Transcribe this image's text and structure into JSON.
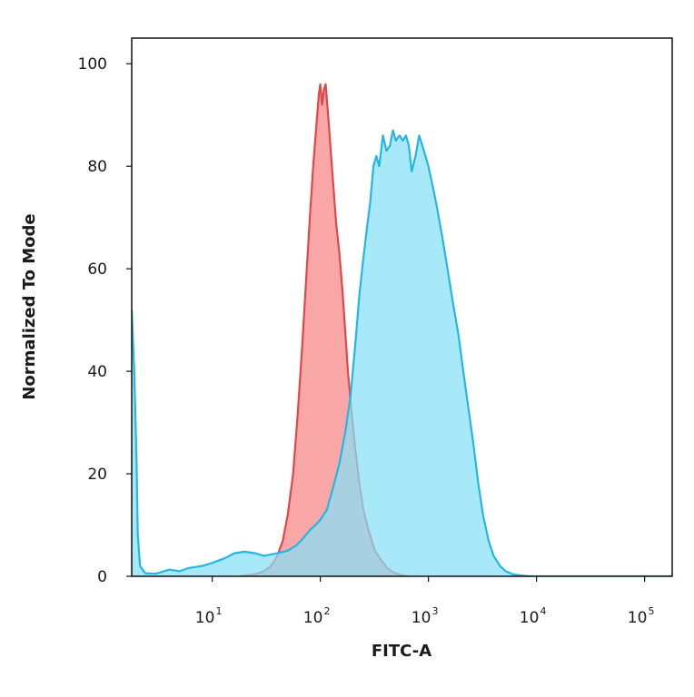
{
  "chart_data": {
    "type": "area",
    "title": "",
    "xlabel": "FITC-A",
    "ylabel": "Normalized To Mode",
    "x_scale": "log",
    "xlim": [
      1.8,
      180000
    ],
    "ylim": [
      0,
      105
    ],
    "grid": false,
    "legend": "none",
    "x_ticks": [
      {
        "base": "10",
        "exp": "1",
        "value": 10
      },
      {
        "base": "10",
        "exp": "2",
        "value": 100
      },
      {
        "base": "10",
        "exp": "3",
        "value": 1000
      },
      {
        "base": "10",
        "exp": "4",
        "value": 10000
      },
      {
        "base": "10",
        "exp": "5",
        "value": 100000
      }
    ],
    "y_ticks": [
      {
        "label": "0",
        "value": 0
      },
      {
        "label": "20",
        "value": 20
      },
      {
        "label": "40",
        "value": 40
      },
      {
        "label": "60",
        "value": 60
      },
      {
        "label": "80",
        "value": 80
      },
      {
        "label": "100",
        "value": 100
      }
    ],
    "series": [
      {
        "fill": "#f9a7a6",
        "stroke": "#e0474a",
        "points": [
          [
            18,
            0
          ],
          [
            25,
            0.4
          ],
          [
            30,
            1
          ],
          [
            35,
            2
          ],
          [
            40,
            4
          ],
          [
            45,
            7
          ],
          [
            50,
            12
          ],
          [
            56,
            20
          ],
          [
            62,
            32
          ],
          [
            68,
            45
          ],
          [
            74,
            58
          ],
          [
            80,
            70
          ],
          [
            86,
            80
          ],
          [
            92,
            88
          ],
          [
            97,
            94
          ],
          [
            100,
            96
          ],
          [
            104,
            92
          ],
          [
            108,
            95
          ],
          [
            112,
            96
          ],
          [
            116,
            92
          ],
          [
            122,
            86
          ],
          [
            130,
            78
          ],
          [
            140,
            69
          ],
          [
            150,
            63
          ],
          [
            160,
            56
          ],
          [
            170,
            48
          ],
          [
            180,
            40
          ],
          [
            195,
            32
          ],
          [
            210,
            25
          ],
          [
            230,
            18
          ],
          [
            250,
            13
          ],
          [
            280,
            9
          ],
          [
            320,
            5
          ],
          [
            370,
            3
          ],
          [
            420,
            1.5
          ],
          [
            480,
            0.7
          ],
          [
            560,
            0.2
          ],
          [
            650,
            0
          ]
        ]
      },
      {
        "fill": "#87e1f7",
        "stroke": "#26b6e0",
        "points": [
          [
            1.8,
            52
          ],
          [
            1.9,
            40
          ],
          [
            2.0,
            22
          ],
          [
            2.05,
            8
          ],
          [
            2.15,
            2
          ],
          [
            2.4,
            0.6
          ],
          [
            3,
            0.5
          ],
          [
            4,
            1.3
          ],
          [
            5,
            1
          ],
          [
            6,
            1.6
          ],
          [
            8,
            2
          ],
          [
            10,
            2.6
          ],
          [
            13,
            3.5
          ],
          [
            16,
            4.5
          ],
          [
            20,
            4.8
          ],
          [
            25,
            4.5
          ],
          [
            30,
            4
          ],
          [
            40,
            4.5
          ],
          [
            50,
            5
          ],
          [
            60,
            6
          ],
          [
            70,
            7.5
          ],
          [
            80,
            9
          ],
          [
            90,
            10
          ],
          [
            100,
            11
          ],
          [
            115,
            13
          ],
          [
            130,
            17
          ],
          [
            150,
            22
          ],
          [
            170,
            28
          ],
          [
            190,
            35
          ],
          [
            210,
            45
          ],
          [
            230,
            55
          ],
          [
            250,
            62
          ],
          [
            270,
            68
          ],
          [
            290,
            73
          ],
          [
            310,
            80
          ],
          [
            330,
            82
          ],
          [
            350,
            80
          ],
          [
            380,
            86
          ],
          [
            410,
            83
          ],
          [
            440,
            84
          ],
          [
            470,
            87
          ],
          [
            500,
            85
          ],
          [
            540,
            86
          ],
          [
            580,
            85
          ],
          [
            620,
            86
          ],
          [
            660,
            84
          ],
          [
            700,
            79
          ],
          [
            760,
            82
          ],
          [
            820,
            86
          ],
          [
            880,
            84
          ],
          [
            940,
            82
          ],
          [
            1000,
            80
          ],
          [
            1100,
            76
          ],
          [
            1200,
            72
          ],
          [
            1350,
            66
          ],
          [
            1500,
            60
          ],
          [
            1700,
            53
          ],
          [
            1900,
            47
          ],
          [
            2100,
            40
          ],
          [
            2300,
            34
          ],
          [
            2600,
            26
          ],
          [
            2900,
            18
          ],
          [
            3200,
            12
          ],
          [
            3600,
            7
          ],
          [
            4000,
            4
          ],
          [
            4600,
            2
          ],
          [
            5200,
            1
          ],
          [
            6000,
            0.4
          ],
          [
            7500,
            0.1
          ],
          [
            9000,
            0
          ],
          [
            20000,
            0
          ],
          [
            100000,
            0
          ],
          [
            180000,
            0
          ]
        ]
      }
    ]
  }
}
